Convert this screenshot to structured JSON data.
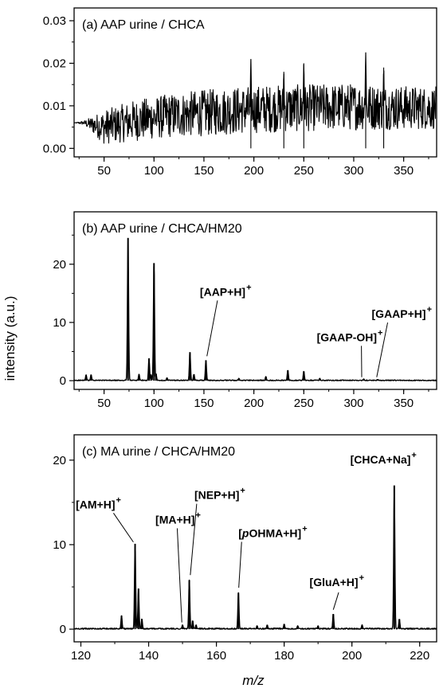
{
  "figure": {
    "ylabel": "intensity (a.u.)",
    "xlabel": "m/z"
  },
  "chart_data": [
    {
      "type": "line",
      "panel": "a",
      "title": "(a) AAP urine / CHCA",
      "xlim": [
        20,
        383
      ],
      "ylim": [
        -0.002,
        0.033
      ],
      "x_ticks": [
        50,
        100,
        150,
        200,
        250,
        300,
        350
      ],
      "y_ticks": [
        0.0,
        0.01,
        0.02,
        0.03
      ],
      "y_tick_labels": [
        "0.00",
        "0.01",
        "0.02",
        "0.03"
      ],
      "noise_trend": {
        "x": [
          20,
          30,
          50,
          80,
          120,
          160,
          200,
          250,
          300,
          340,
          383
        ],
        "y": [
          0.006,
          0.006,
          0.005,
          0.0065,
          0.0078,
          0.0085,
          0.0092,
          0.0095,
          0.0098,
          0.0096,
          0.0095
        ],
        "amplitude": [
          0.0,
          0.0005,
          0.004,
          0.0048,
          0.0052,
          0.0055,
          0.0056,
          0.0055,
          0.0055,
          0.0052,
          0.005
        ]
      },
      "peaks": [
        {
          "x": 197,
          "y": 0.021
        },
        {
          "x": 250,
          "y": 0.02
        },
        {
          "x": 312,
          "y": 0.0225
        },
        {
          "x": 330,
          "y": 0.019
        },
        {
          "x": 230,
          "y": 0.018
        }
      ],
      "annotations": []
    },
    {
      "type": "line",
      "panel": "b",
      "title": "(b) AAP urine / CHCA/HM20",
      "xlim": [
        20,
        383
      ],
      "ylim": [
        -1.5,
        29
      ],
      "x_ticks": [
        50,
        100,
        150,
        200,
        250,
        300,
        350
      ],
      "y_ticks": [
        0,
        10,
        20
      ],
      "y_tick_labels": [
        "0",
        "10",
        "20"
      ],
      "noise_trend": {
        "x": [
          20,
          383
        ],
        "y": [
          0.05,
          0.05
        ],
        "amplitude": [
          0.08,
          0.08
        ]
      },
      "peaks": [
        {
          "x": 32,
          "y": 1.0
        },
        {
          "x": 37,
          "y": 1.0
        },
        {
          "x": 74,
          "y": 24.5
        },
        {
          "x": 85,
          "y": 1.1
        },
        {
          "x": 95,
          "y": 3.8
        },
        {
          "x": 97,
          "y": 1.0
        },
        {
          "x": 100,
          "y": 20.2
        },
        {
          "x": 102,
          "y": 1.2
        },
        {
          "x": 113,
          "y": 0.5
        },
        {
          "x": 136,
          "y": 4.9
        },
        {
          "x": 140,
          "y": 1.1
        },
        {
          "x": 152,
          "y": 3.5
        },
        {
          "x": 185,
          "y": 0.4
        },
        {
          "x": 212,
          "y": 0.7
        },
        {
          "x": 234,
          "y": 1.8
        },
        {
          "x": 250,
          "y": 1.6
        },
        {
          "x": 266,
          "y": 0.4
        },
        {
          "x": 310,
          "y": 0.3
        },
        {
          "x": 324,
          "y": 0.2
        }
      ],
      "annotations": [
        {
          "label": "[AAP+H]",
          "sup": "+",
          "text_x": 146,
          "text_y": 14.6,
          "to_x": 153,
          "to_y": 4.2
        },
        {
          "label": "[GAAP-OH]",
          "sup": "+",
          "text_x": 263,
          "text_y": 6.8,
          "to_x": 308,
          "to_y": 0.6
        },
        {
          "label": "[GAAP+H]",
          "sup": "+",
          "text_x": 318,
          "text_y": 10.8,
          "to_x": 323,
          "to_y": 0.6
        }
      ]
    },
    {
      "type": "line",
      "panel": "c",
      "title": "(c) MA urine / CHCA/HM20",
      "xlim": [
        118,
        225
      ],
      "ylim": [
        -1.5,
        23
      ],
      "x_ticks": [
        120,
        140,
        160,
        180,
        200,
        220
      ],
      "y_ticks": [
        0,
        10,
        20
      ],
      "y_tick_labels": [
        "0",
        "10",
        "20"
      ],
      "noise_trend": {
        "x": [
          118,
          225
        ],
        "y": [
          0.05,
          0.05
        ],
        "amplitude": [
          0.08,
          0.08
        ]
      },
      "peaks": [
        {
          "x": 132,
          "y": 1.6
        },
        {
          "x": 136,
          "y": 10.1
        },
        {
          "x": 137,
          "y": 4.8
        },
        {
          "x": 138,
          "y": 1.2
        },
        {
          "x": 150,
          "y": 0.5
        },
        {
          "x": 152,
          "y": 5.8
        },
        {
          "x": 153,
          "y": 1.0
        },
        {
          "x": 154,
          "y": 0.5
        },
        {
          "x": 166.5,
          "y": 4.3
        },
        {
          "x": 172,
          "y": 0.4
        },
        {
          "x": 175,
          "y": 0.5
        },
        {
          "x": 180,
          "y": 0.6
        },
        {
          "x": 184,
          "y": 0.4
        },
        {
          "x": 190,
          "y": 0.4
        },
        {
          "x": 194.5,
          "y": 1.8
        },
        {
          "x": 203,
          "y": 0.5
        },
        {
          "x": 212.5,
          "y": 17.0
        },
        {
          "x": 214,
          "y": 1.2
        }
      ],
      "annotations": [
        {
          "label": "[AM+H]",
          "sup": "+",
          "text_x": 118.5,
          "text_y": 14.3,
          "to_x": 135.5,
          "to_y": 10.3
        },
        {
          "label": "[MA+H]",
          "sup": "+",
          "text_x": 142,
          "text_y": 12.5,
          "to_x": 149.8,
          "to_y": 0.8
        },
        {
          "label": "[NEP+H]",
          "sup": "+",
          "text_x": 153.5,
          "text_y": 15.4,
          "to_x": 152.3,
          "to_y": 6.4
        },
        {
          "label": "[pOHMA+H]",
          "sup": "+",
          "text_x": 166.5,
          "text_y": 10.9,
          "to_x": 166.6,
          "to_y": 4.9
        },
        {
          "label": "[GluA+H]",
          "sup": "+",
          "text_x": 187.5,
          "text_y": 5.1,
          "to_x": 194.5,
          "to_y": 2.3
        },
        {
          "label": "[CHCA+Na]",
          "sup": "+",
          "text_x": 199.5,
          "text_y": 19.6,
          "to_x": null,
          "to_y": null
        }
      ]
    }
  ]
}
